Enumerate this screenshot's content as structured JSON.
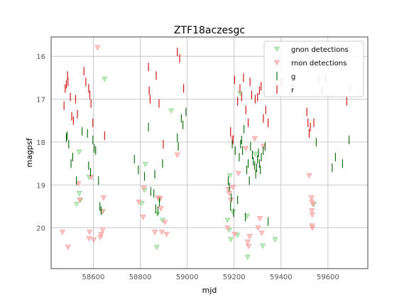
{
  "chart_data": {
    "type": "scatter",
    "title": "ZTF18aczesgc",
    "xlabel": "mjd",
    "ylabel": "magpsf",
    "xlim": [
      58420,
      59770
    ],
    "ylim": [
      20.95,
      15.55
    ],
    "y_inverted": true,
    "grid": true,
    "legend_position": "top-right",
    "xticks": [
      58600,
      58800,
      59000,
      59200,
      59400,
      59600
    ],
    "yticks": [
      16,
      17,
      18,
      19,
      20
    ],
    "colors": {
      "g": "#006400",
      "r": "#cc0000",
      "gnon": "#90d890",
      "rnon": "#ff9a9a"
    },
    "series": [
      {
        "name": "gnon detections",
        "marker": "triangle-down",
        "color_key": "gnon",
        "points": [
          [
            58528,
            19.45
          ],
          [
            58540,
            19.2
          ],
          [
            58545,
            19.35
          ],
          [
            58540,
            18.23
          ],
          [
            58582,
            18.82
          ],
          [
            58640,
            19.62
          ],
          [
            58648,
            16.53
          ],
          [
            58806,
            19.43
          ],
          [
            58818,
            19.12
          ],
          [
            58822,
            18.52
          ],
          [
            58870,
            20.45
          ],
          [
            58873,
            19.68
          ],
          [
            58880,
            19.35
          ],
          [
            58895,
            19.82
          ],
          [
            58932,
            17.27
          ],
          [
            59172,
            19.82
          ],
          [
            59180,
            20.05
          ],
          [
            59182,
            18.78
          ],
          [
            59186,
            20.27
          ],
          [
            59195,
            19.63
          ],
          [
            59215,
            20.17
          ],
          [
            59225,
            16.87
          ],
          [
            59255,
            19.73
          ],
          [
            59258,
            20.68
          ],
          [
            59290,
            18.28
          ],
          [
            59322,
            20.42
          ],
          [
            59375,
            20.27
          ],
          [
            59540,
            19.45
          ]
        ]
      },
      {
        "name": "rnon detections",
        "marker": "triangle-down",
        "color_key": "rnon",
        "points": [
          [
            58468,
            20.1
          ],
          [
            58492,
            20.45
          ],
          [
            58536,
            18.97
          ],
          [
            58542,
            19.35
          ],
          [
            58582,
            20.25
          ],
          [
            58584,
            20.1
          ],
          [
            58592,
            18.82
          ],
          [
            58602,
            20.28
          ],
          [
            58618,
            15.8
          ],
          [
            58630,
            20.22
          ],
          [
            58633,
            20.15
          ],
          [
            58638,
            19.62
          ],
          [
            58640,
            20.05
          ],
          [
            58643,
            19.3
          ],
          [
            58794,
            19.4
          ],
          [
            58812,
            19.75
          ],
          [
            58815,
            19.07
          ],
          [
            58862,
            20.1
          ],
          [
            58876,
            19.3
          ],
          [
            58885,
            19.32
          ],
          [
            58888,
            19.55
          ],
          [
            58892,
            20.1
          ],
          [
            58905,
            19.87
          ],
          [
            58912,
            20.15
          ],
          [
            58958,
            18.3
          ],
          [
            59172,
            20.0
          ],
          [
            59176,
            19.1
          ],
          [
            59180,
            19.2
          ],
          [
            59186,
            19.35
          ],
          [
            59192,
            17.9
          ],
          [
            59196,
            19.05
          ],
          [
            59202,
            20.15
          ],
          [
            59218,
            18.73
          ],
          [
            59250,
            18.15
          ],
          [
            59258,
            20.33
          ],
          [
            59262,
            20.43
          ],
          [
            59266,
            20.2
          ],
          [
            59288,
            17.92
          ],
          [
            59302,
            20.0
          ],
          [
            59310,
            19.78
          ],
          [
            59318,
            20.12
          ],
          [
            59325,
            18.1
          ],
          [
            59520,
            18.78
          ],
          [
            59530,
            19.3
          ],
          [
            59531,
            19.4
          ],
          [
            59532,
            19.6
          ],
          [
            59533,
            19.7
          ],
          [
            59532,
            19.95
          ],
          [
            59534,
            20.0
          ],
          [
            59536,
            19.45
          ]
        ]
      },
      {
        "name": "g",
        "marker": "vline",
        "color_key": "g",
        "points": [
          [
            58485,
            17.9
          ],
          [
            58488,
            17.85
          ],
          [
            58495,
            18.05
          ],
          [
            58505,
            18.5
          ],
          [
            58512,
            18.35
          ],
          [
            58528,
            18.9
          ],
          [
            58552,
            17.75
          ],
          [
            58575,
            17.8
          ],
          [
            58580,
            18.55
          ],
          [
            58588,
            18.7
          ],
          [
            58598,
            17.95
          ],
          [
            58604,
            18.15
          ],
          [
            58610,
            18.2
          ],
          [
            58622,
            18.9
          ],
          [
            58628,
            19.5
          ],
          [
            58633,
            19.6
          ],
          [
            58775,
            18.4
          ],
          [
            58792,
            18.65
          ],
          [
            58818,
            18.8
          ],
          [
            58835,
            17.65
          ],
          [
            58845,
            19.15
          ],
          [
            58858,
            19.2
          ],
          [
            58862,
            18.75
          ],
          [
            58866,
            19.55
          ],
          [
            58875,
            19.6
          ],
          [
            58882,
            19.4
          ],
          [
            58895,
            18.5
          ],
          [
            58958,
            17.9
          ],
          [
            58962,
            18.1
          ],
          [
            58975,
            17.45
          ],
          [
            58982,
            17.6
          ],
          [
            58995,
            17.3
          ],
          [
            59175,
            18.9
          ],
          [
            59180,
            19.05
          ],
          [
            59185,
            19.5
          ],
          [
            59188,
            19.3
          ],
          [
            59192,
            18.05
          ],
          [
            59198,
            19.65
          ],
          [
            59205,
            18.2
          ],
          [
            59215,
            19.35
          ],
          [
            59222,
            18.35
          ],
          [
            59228,
            18.05
          ],
          [
            59232,
            17.95
          ],
          [
            59236,
            18.2
          ],
          [
            59242,
            17.7
          ],
          [
            59248,
            19.75
          ],
          [
            59254,
            18.65
          ],
          [
            59260,
            18.5
          ],
          [
            59265,
            18.9
          ],
          [
            59270,
            18.1
          ],
          [
            59278,
            18.3
          ],
          [
            59282,
            18.45
          ],
          [
            59288,
            18.55
          ],
          [
            59292,
            18.75
          ],
          [
            59296,
            18.6
          ],
          [
            59300,
            18.4
          ],
          [
            59304,
            18.25
          ],
          [
            59308,
            18.5
          ],
          [
            59312,
            18.65
          ],
          [
            59316,
            18.35
          ],
          [
            59324,
            18.2
          ],
          [
            59332,
            18.1
          ],
          [
            59345,
            19.85
          ],
          [
            59550,
            18.0
          ],
          [
            59618,
            18.6
          ],
          [
            59632,
            18.35
          ],
          [
            59662,
            18.5
          ],
          [
            59690,
            17.95
          ]
        ]
      },
      {
        "name": "r",
        "marker": "vline",
        "color_key": "r",
        "points": [
          [
            58475,
            17.15
          ],
          [
            58480,
            16.75
          ],
          [
            58485,
            16.65
          ],
          [
            58490,
            16.45
          ],
          [
            58492,
            16.6
          ],
          [
            58502,
            16.95
          ],
          [
            58508,
            17.4
          ],
          [
            58515,
            17.5
          ],
          [
            58524,
            17.0
          ],
          [
            58532,
            17.35
          ],
          [
            58560,
            16.35
          ],
          [
            58568,
            16.6
          ],
          [
            58580,
            16.75
          ],
          [
            58585,
            16.9
          ],
          [
            58590,
            17.1
          ],
          [
            58598,
            17.55
          ],
          [
            58648,
            17.85
          ],
          [
            58835,
            16.25
          ],
          [
            58838,
            16.8
          ],
          [
            58842,
            17.0
          ],
          [
            58868,
            16.45
          ],
          [
            58880,
            17.1
          ],
          [
            58898,
            18.05
          ],
          [
            58958,
            15.9
          ],
          [
            58968,
            16.05
          ],
          [
            58985,
            16.75
          ],
          [
            59185,
            17.75
          ],
          [
            59195,
            17.95
          ],
          [
            59202,
            16.55
          ],
          [
            59215,
            17.05
          ],
          [
            59225,
            16.75
          ],
          [
            59232,
            16.95
          ],
          [
            59240,
            16.5
          ],
          [
            59250,
            17.25
          ],
          [
            59260,
            17.55
          ],
          [
            59268,
            16.6
          ],
          [
            59275,
            16.9
          ],
          [
            59290,
            17.0
          ],
          [
            59300,
            16.95
          ],
          [
            59308,
            16.8
          ],
          [
            59315,
            16.7
          ],
          [
            59325,
            17.45
          ],
          [
            59335,
            17.25
          ],
          [
            59345,
            17.55
          ],
          [
            59400,
            16.6
          ],
          [
            59450,
            16.75
          ],
          [
            59510,
            17.3
          ],
          [
            59515,
            17.55
          ],
          [
            59520,
            17.8
          ],
          [
            59525,
            17.65
          ],
          [
            59540,
            17.55
          ],
          [
            59560,
            16.55
          ],
          [
            59575,
            16.8
          ],
          [
            59590,
            16.5
          ],
          [
            59680,
            17.05
          ],
          [
            59695,
            16.75
          ]
        ]
      }
    ]
  }
}
